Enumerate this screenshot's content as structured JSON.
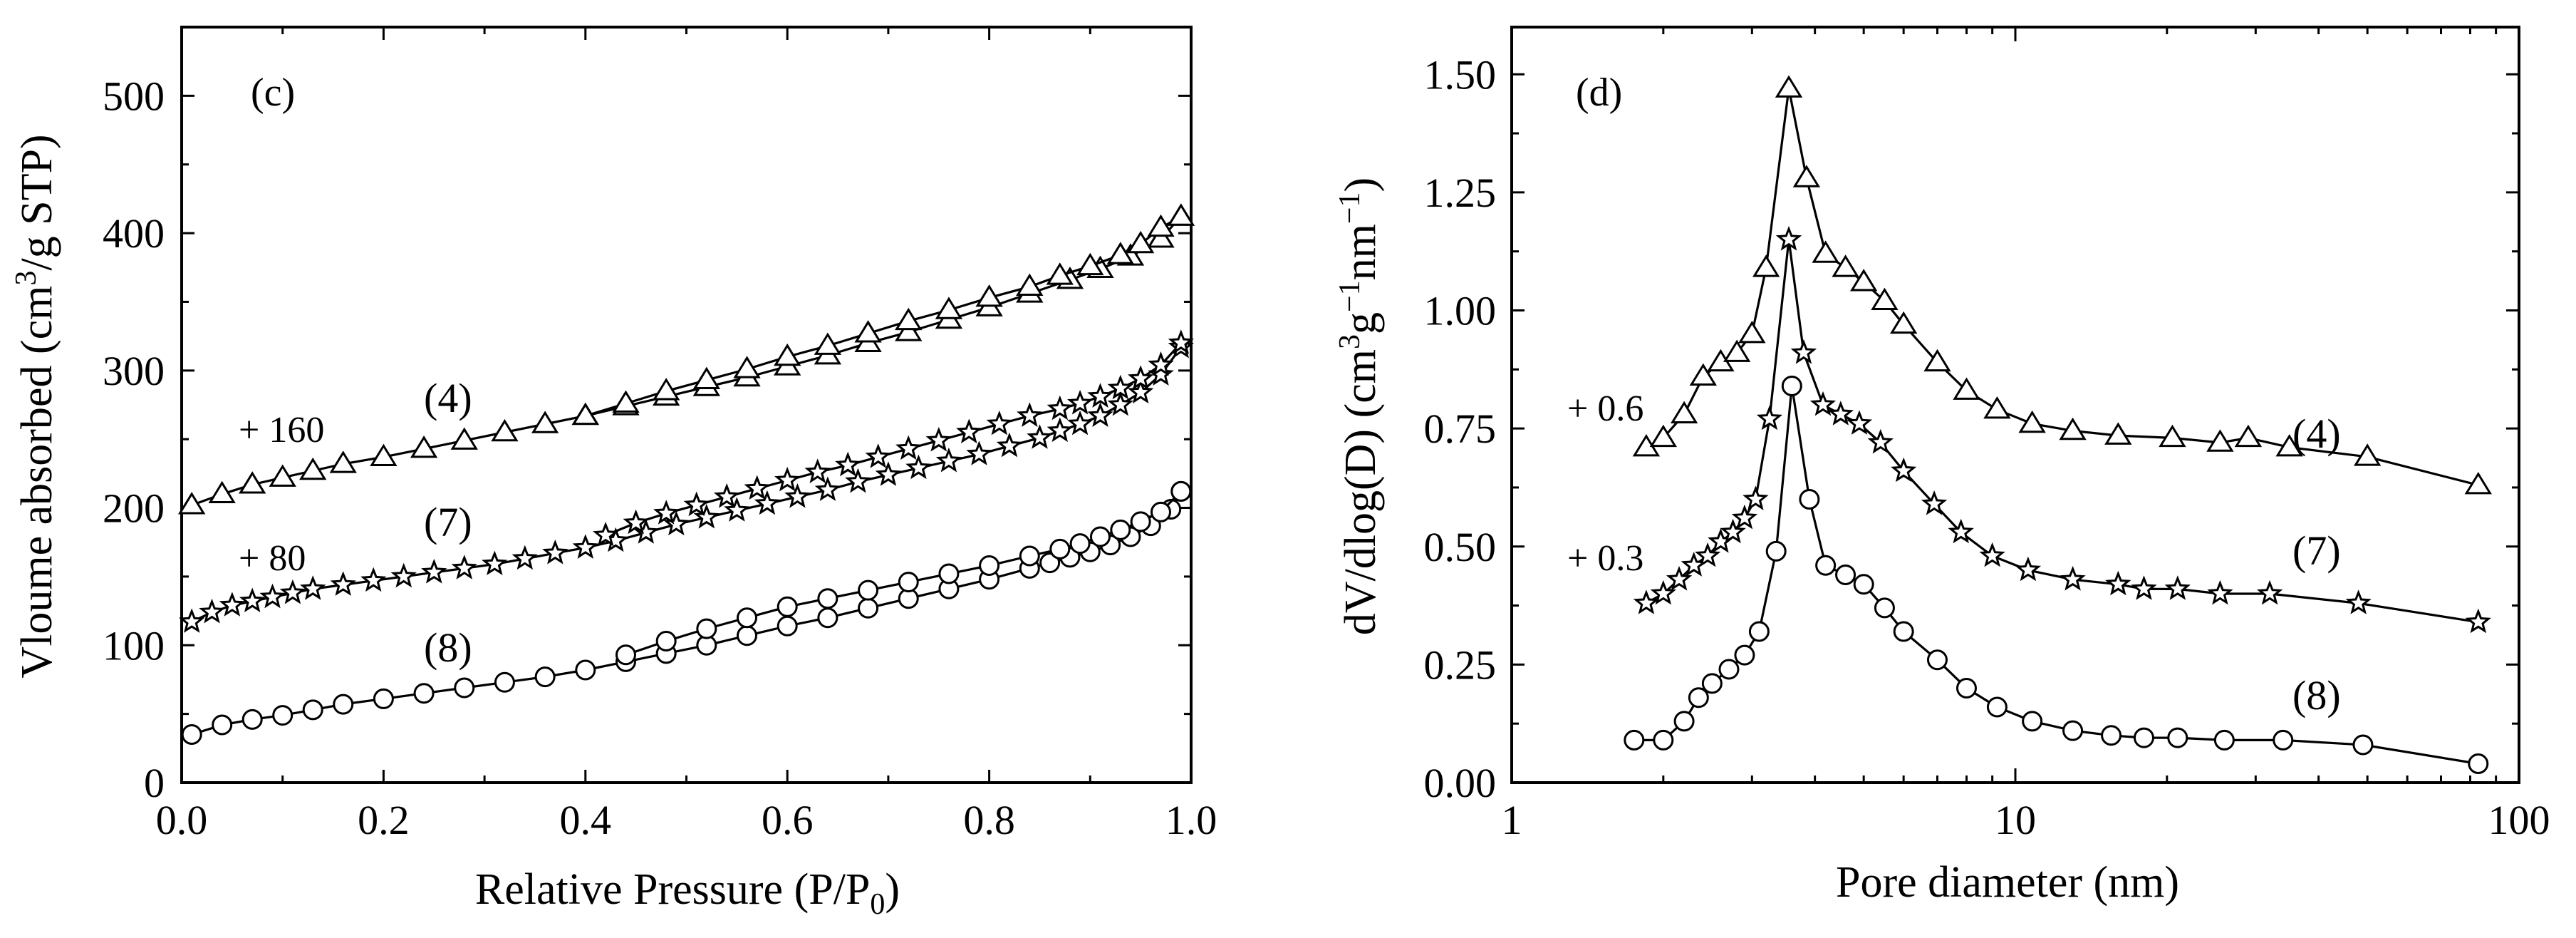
{
  "chart_data": [
    {
      "panel": "(c)",
      "type": "line",
      "xlabel_main": "Relative Pressure (P/P",
      "xlabel_sub": "0",
      "xlabel_end": ")",
      "ylabel_main": "Vloume absorbed (cm",
      "ylabel_sup": "3",
      "ylabel_end": "/g STP)",
      "xlim": [
        0,
        1.0
      ],
      "ylim": [
        0,
        550
      ],
      "xticks": [
        0.0,
        0.2,
        0.4,
        0.6,
        0.8,
        1.0
      ],
      "xtick_labels": [
        "0.0",
        "0.2",
        "0.4",
        "0.6",
        "0.8",
        "1.0"
      ],
      "yticks": [
        0,
        100,
        200,
        300,
        400,
        500
      ],
      "ytick_labels": [
        "0",
        "100",
        "200",
        "300",
        "400",
        "500"
      ],
      "series": [
        {
          "name": "(4)",
          "marker": "triangle",
          "offset_label": "+ 160",
          "adsorption": {
            "x": [
              0.01,
              0.04,
              0.07,
              0.1,
              0.13,
              0.16,
              0.2,
              0.24,
              0.28,
              0.32,
              0.36,
              0.4,
              0.44,
              0.48,
              0.52,
              0.56,
              0.6,
              0.64,
              0.68,
              0.72,
              0.76,
              0.8,
              0.84,
              0.88,
              0.91,
              0.94,
              0.97,
              0.99
            ],
            "y": [
              202,
              210,
              217,
              222,
              227,
              232,
              237,
              243,
              249,
              255,
              261,
              267,
              274,
              281,
              288,
              295,
              303,
              311,
              320,
              328,
              337,
              346,
              356,
              366,
              374,
              383,
              396,
              412
            ]
          },
          "desorption": {
            "x": [
              0.99,
              0.97,
              0.95,
              0.93,
              0.9,
              0.87,
              0.84,
              0.8,
              0.76,
              0.72,
              0.68,
              0.64,
              0.6,
              0.56,
              0.52,
              0.48,
              0.44,
              0.4
            ],
            "y": [
              412,
              404,
              392,
              384,
              376,
              369,
              361,
              353,
              344,
              336,
              327,
              318,
              310,
              301,
              293,
              285,
              276,
              267
            ]
          }
        },
        {
          "name": "(7)",
          "marker": "star",
          "offset_label": "+ 80",
          "adsorption": {
            "x": [
              0.01,
              0.03,
              0.05,
              0.07,
              0.09,
              0.11,
              0.13,
              0.16,
              0.19,
              0.22,
              0.25,
              0.28,
              0.31,
              0.34,
              0.37,
              0.4,
              0.43,
              0.46,
              0.49,
              0.52,
              0.55,
              0.58,
              0.61,
              0.64,
              0.67,
              0.7,
              0.73,
              0.76,
              0.79,
              0.82,
              0.85,
              0.87,
              0.89,
              0.91,
              0.93,
              0.95,
              0.97,
              0.99
            ],
            "y": [
              117,
              124,
              129,
              132,
              135,
              138,
              141,
              144,
              147,
              150,
              153,
              156,
              159,
              163,
              167,
              171,
              176,
              182,
              188,
              193,
              198,
              203,
              208,
              213,
              219,
              224,
              229,
              234,
              239,
              245,
              251,
              256,
              261,
              267,
              275,
              284,
              297,
              317
            ]
          },
          "desorption": {
            "x": [
              0.99,
              0.97,
              0.95,
              0.93,
              0.91,
              0.89,
              0.87,
              0.84,
              0.81,
              0.78,
              0.75,
              0.72,
              0.69,
              0.66,
              0.63,
              0.6,
              0.57,
              0.54,
              0.51,
              0.48,
              0.45,
              0.42
            ],
            "y": [
              320,
              304,
              294,
              287,
              281,
              276,
              272,
              267,
              261,
              255,
              249,
              243,
              237,
              231,
              226,
              220,
              214,
              208,
              202,
              196,
              189,
              180
            ]
          }
        },
        {
          "name": "(8)",
          "marker": "circle",
          "offset_label": "",
          "adsorption": {
            "x": [
              0.01,
              0.04,
              0.07,
              0.1,
              0.13,
              0.16,
              0.2,
              0.24,
              0.28,
              0.32,
              0.36,
              0.4,
              0.44,
              0.48,
              0.52,
              0.56,
              0.6,
              0.64,
              0.68,
              0.72,
              0.76,
              0.8,
              0.84,
              0.86,
              0.88,
              0.9,
              0.92,
              0.94,
              0.96,
              0.98,
              0.99
            ],
            "y": [
              35,
              42,
              46,
              49,
              53,
              57,
              61,
              65,
              69,
              73,
              77,
              82,
              88,
              94,
              100,
              107,
              114,
              120,
              127,
              134,
              141,
              148,
              156,
              160,
              164,
              168,
              173,
              179,
              187,
              199,
              212
            ]
          },
          "desorption": {
            "x": [
              0.99,
              0.97,
              0.95,
              0.93,
              0.91,
              0.89,
              0.87,
              0.84,
              0.8,
              0.76,
              0.72,
              0.68,
              0.64,
              0.6,
              0.56,
              0.52,
              0.48,
              0.44
            ],
            "y": [
              212,
              197,
              190,
              184,
              179,
              174,
              170,
              165,
              158,
              152,
              146,
              140,
              134,
              128,
              120,
              112,
              103,
              93
            ]
          }
        }
      ]
    },
    {
      "panel": "(d)",
      "type": "line",
      "xscale": "log",
      "xlabel": "Pore diameter (nm)",
      "ylabel_main": "dV/dlog(D) (cm",
      "ylabel_sup1": "3",
      "ylabel_mid": "g",
      "ylabel_sup2": "−1",
      "ylabel_mid2": "nm",
      "ylabel_sup3": "−1",
      "ylabel_end": ")",
      "xlim": [
        1,
        100
      ],
      "ylim": [
        0,
        1.6
      ],
      "xticks": [
        1,
        10,
        100
      ],
      "xtick_labels": [
        "1",
        "10",
        "100"
      ],
      "yticks": [
        0,
        0.25,
        0.5,
        0.75,
        1.0,
        1.25,
        1.5
      ],
      "ytick_labels": [
        "0.00",
        "0.25",
        "0.50",
        "0.75",
        "1.00",
        "1.25",
        "1.50"
      ],
      "series": [
        {
          "name": "(4)",
          "marker": "triangle",
          "offset_label": "+ 0.6",
          "x": [
            1.85,
            2.0,
            2.2,
            2.4,
            2.6,
            2.8,
            3.0,
            3.2,
            3.55,
            3.85,
            4.2,
            4.6,
            5.0,
            5.5,
            6.0,
            7.0,
            8.0,
            9.2,
            10.8,
            13.0,
            16.0,
            20.5,
            25.5,
            29.0,
            35.0,
            50.0,
            83.0
          ],
          "y": [
            0.71,
            0.73,
            0.78,
            0.86,
            0.89,
            0.91,
            0.95,
            1.09,
            1.47,
            1.28,
            1.12,
            1.09,
            1.06,
            1.02,
            0.97,
            0.89,
            0.83,
            0.79,
            0.76,
            0.745,
            0.735,
            0.73,
            0.72,
            0.73,
            0.71,
            0.69,
            0.63
          ]
        },
        {
          "name": "(7)",
          "marker": "star",
          "offset_label": "+ 0.3",
          "x": [
            1.85,
            2.0,
            2.15,
            2.3,
            2.45,
            2.6,
            2.75,
            2.9,
            3.05,
            3.25,
            3.55,
            3.8,
            4.15,
            4.5,
            4.9,
            5.4,
            6.0,
            6.9,
            7.8,
            9.0,
            10.6,
            13.0,
            16.0,
            18.0,
            21.0,
            25.5,
            32.0,
            48.0,
            83.0
          ],
          "y": [
            0.38,
            0.4,
            0.43,
            0.46,
            0.48,
            0.51,
            0.53,
            0.56,
            0.6,
            0.77,
            1.15,
            0.91,
            0.8,
            0.78,
            0.76,
            0.72,
            0.66,
            0.59,
            0.53,
            0.48,
            0.45,
            0.43,
            0.42,
            0.41,
            0.41,
            0.4,
            0.4,
            0.38,
            0.34
          ]
        },
        {
          "name": "(8)",
          "marker": "circle",
          "offset_label": "",
          "x": [
            1.75,
            2.0,
            2.2,
            2.35,
            2.5,
            2.7,
            2.9,
            3.1,
            3.35,
            3.6,
            3.9,
            4.2,
            4.6,
            5.0,
            5.5,
            6.0,
            7.0,
            8.0,
            9.2,
            10.8,
            13.0,
            15.5,
            18.0,
            21.0,
            26.0,
            34.0,
            49.0,
            83.0
          ],
          "y": [
            0.09,
            0.09,
            0.13,
            0.18,
            0.21,
            0.24,
            0.27,
            0.32,
            0.49,
            0.84,
            0.6,
            0.46,
            0.44,
            0.42,
            0.37,
            0.32,
            0.26,
            0.2,
            0.16,
            0.13,
            0.11,
            0.1,
            0.095,
            0.095,
            0.09,
            0.09,
            0.08,
            0.04
          ]
        }
      ]
    }
  ]
}
